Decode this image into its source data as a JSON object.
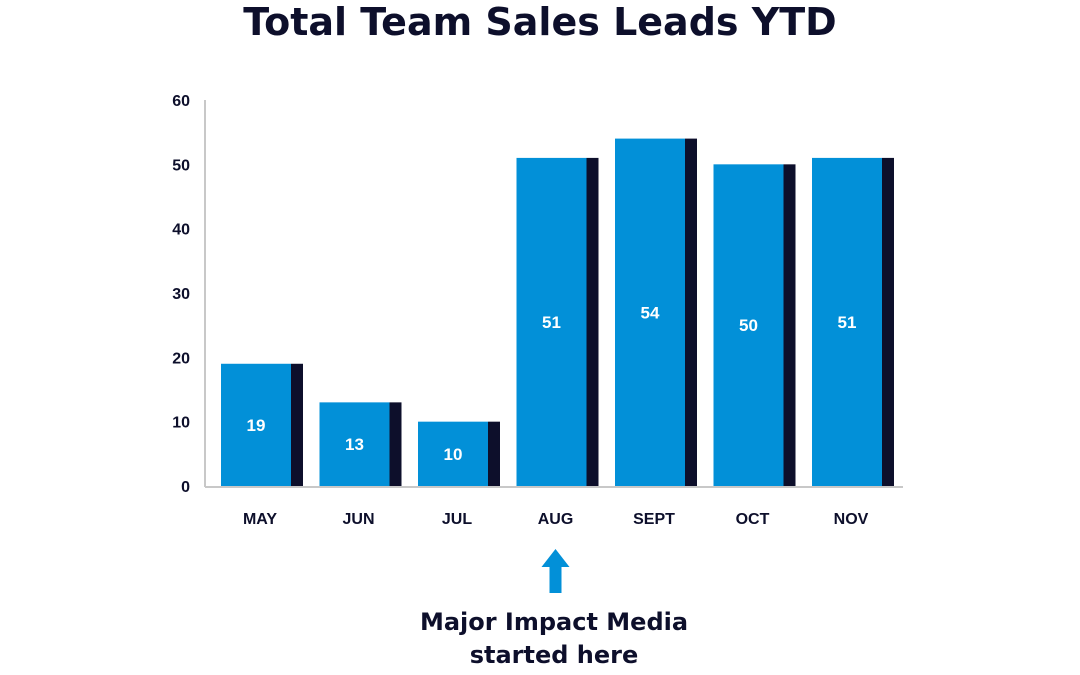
{
  "chart_data": {
    "type": "bar",
    "title": "Total Team Sales Leads YTD",
    "categories": [
      "MAY",
      "JUN",
      "JUL",
      "AUG",
      "SEPT",
      "OCT",
      "NOV"
    ],
    "values": [
      19,
      13,
      10,
      51,
      54,
      50,
      51
    ],
    "ylim": [
      0,
      60
    ],
    "yticks": [
      0,
      10,
      20,
      30,
      40,
      50,
      60
    ],
    "xlabel": "",
    "ylabel": "",
    "grid": false,
    "data_labels": true,
    "annotation": {
      "category": "AUG",
      "arrow": "up-arrow-icon",
      "lines": [
        "Major Impact Media",
        "started here"
      ]
    }
  },
  "colors": {
    "bar": "#0290d8",
    "bar_shadow": "#0d0f2b",
    "text": "#0d0f2b",
    "axis": "#c8c8c8",
    "bar_label": "#ffffff"
  }
}
